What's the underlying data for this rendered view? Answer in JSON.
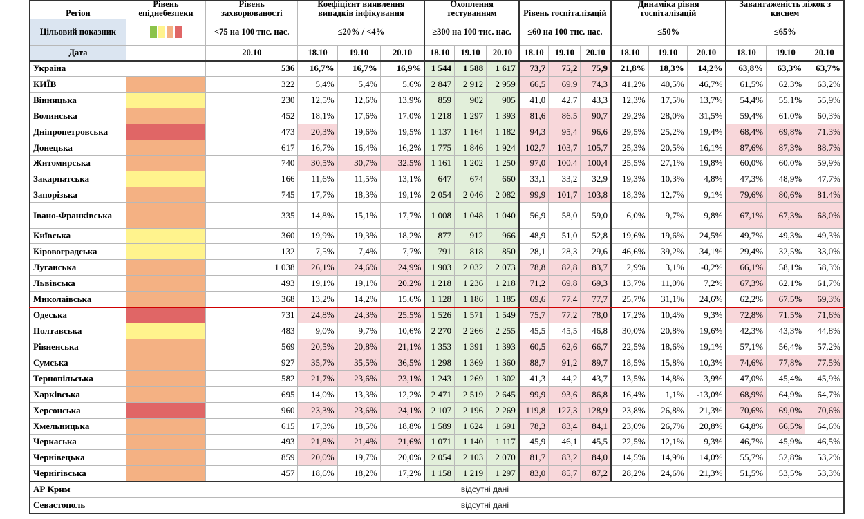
{
  "header": {
    "region": "Регіон",
    "level_title": "Рівень епіднебезпеки",
    "incidence_title": "Рівень захворюваності",
    "detection_title": "Коефіцієнт виявлення випадків інфікування",
    "testing_title": "Охоплення тестуванням",
    "hosp_title": "Рівень госпіталізацій",
    "dyn_title": "Динаміка рівня госпіталізацій",
    "oxygen_title": "Завантаженість ліжок з киснем"
  },
  "target": {
    "label": "Цільовий показник",
    "incidence": "<75 на 100 тис. нас.",
    "detection": "≤20% / <4%",
    "testing": "≥300 на 100 тис. нас.",
    "hosp": "≤60 на 100 тис. нас.",
    "dyn": "≤50%",
    "oxygen": "≤65%"
  },
  "date_row": {
    "label": "Дата",
    "incidence_date": "20.10",
    "dates": [
      "18.10",
      "19.10",
      "20.10"
    ]
  },
  "colors": {
    "orange": "#f4b183",
    "yellow": "#fff38d",
    "red": "#e06666",
    "green_cell": "#e2efda",
    "pink_cell": "#f8d7da",
    "divider": "#d00000",
    "target_label_bg": "#dbe5f1"
  },
  "legend_swatches": [
    "#8bc34a",
    "#fff38d",
    "#f4b183",
    "#e06666"
  ],
  "rows": [
    {
      "name": "Україна",
      "level": "none",
      "inc": "536",
      "det": [
        "16,7%",
        "16,7%",
        "16,9%"
      ],
      "test": [
        "1 544",
        "1 588",
        "1 617"
      ],
      "hosp": [
        "73,7",
        "75,2",
        "75,9"
      ],
      "dyn": [
        "21,8%",
        "18,3%",
        "14,2%"
      ],
      "oxy": [
        "63,8%",
        "63,3%",
        "63,7%"
      ],
      "det_hl": [
        0,
        0,
        0
      ],
      "test_hl": [
        1,
        1,
        1
      ],
      "hosp_hl": [
        1,
        1,
        1
      ],
      "oxy_hl": [
        0,
        0,
        0
      ]
    },
    {
      "name": "КИЇВ",
      "level": "orange",
      "inc": "322",
      "det": [
        "5,4%",
        "5,4%",
        "5,6%"
      ],
      "test": [
        "2 847",
        "2 912",
        "2 959"
      ],
      "hosp": [
        "66,5",
        "69,9",
        "74,3"
      ],
      "dyn": [
        "41,2%",
        "40,5%",
        "46,7%"
      ],
      "oxy": [
        "61,5%",
        "62,3%",
        "63,2%"
      ],
      "det_hl": [
        0,
        0,
        0
      ],
      "test_hl": [
        1,
        1,
        1
      ],
      "hosp_hl": [
        1,
        1,
        1
      ],
      "oxy_hl": [
        0,
        0,
        0
      ]
    },
    {
      "name": "Вінницька",
      "level": "yellow",
      "inc": "230",
      "det": [
        "12,5%",
        "12,6%",
        "13,9%"
      ],
      "test": [
        "859",
        "902",
        "905"
      ],
      "hosp": [
        "41,0",
        "42,7",
        "43,3"
      ],
      "dyn": [
        "12,3%",
        "17,5%",
        "13,7%"
      ],
      "oxy": [
        "54,4%",
        "55,1%",
        "55,9%"
      ],
      "det_hl": [
        0,
        0,
        0
      ],
      "test_hl": [
        1,
        1,
        1
      ],
      "hosp_hl": [
        0,
        0,
        0
      ],
      "oxy_hl": [
        0,
        0,
        0
      ]
    },
    {
      "name": "Волинська",
      "level": "orange",
      "inc": "452",
      "det": [
        "18,1%",
        "17,6%",
        "17,0%"
      ],
      "test": [
        "1 218",
        "1 297",
        "1 393"
      ],
      "hosp": [
        "81,6",
        "86,5",
        "90,7"
      ],
      "dyn": [
        "29,2%",
        "28,0%",
        "31,5%"
      ],
      "oxy": [
        "59,4%",
        "61,0%",
        "60,3%"
      ],
      "det_hl": [
        0,
        0,
        0
      ],
      "test_hl": [
        1,
        1,
        1
      ],
      "hosp_hl": [
        1,
        1,
        1
      ],
      "oxy_hl": [
        0,
        0,
        0
      ]
    },
    {
      "name": "Дніпропетровська",
      "level": "red",
      "inc": "473",
      "det": [
        "20,3%",
        "19,6%",
        "19,5%"
      ],
      "test": [
        "1 137",
        "1 164",
        "1 182"
      ],
      "hosp": [
        "94,3",
        "95,4",
        "96,6"
      ],
      "dyn": [
        "29,5%",
        "25,2%",
        "19,4%"
      ],
      "oxy": [
        "68,4%",
        "69,8%",
        "71,3%"
      ],
      "det_hl": [
        1,
        0,
        0
      ],
      "test_hl": [
        1,
        1,
        1
      ],
      "hosp_hl": [
        1,
        1,
        1
      ],
      "oxy_hl": [
        1,
        1,
        1
      ]
    },
    {
      "name": "Донецька",
      "level": "orange",
      "inc": "617",
      "det": [
        "16,7%",
        "16,4%",
        "16,2%"
      ],
      "test": [
        "1 775",
        "1 846",
        "1 924"
      ],
      "hosp": [
        "102,7",
        "103,7",
        "105,7"
      ],
      "dyn": [
        "25,3%",
        "20,5%",
        "16,1%"
      ],
      "oxy": [
        "87,6%",
        "87,3%",
        "88,7%"
      ],
      "det_hl": [
        0,
        0,
        0
      ],
      "test_hl": [
        1,
        1,
        1
      ],
      "hosp_hl": [
        1,
        1,
        1
      ],
      "oxy_hl": [
        1,
        1,
        1
      ]
    },
    {
      "name": "Житомирська",
      "level": "orange",
      "inc": "740",
      "det": [
        "30,5%",
        "30,7%",
        "32,5%"
      ],
      "test": [
        "1 161",
        "1 202",
        "1 250"
      ],
      "hosp": [
        "97,0",
        "100,4",
        "100,4"
      ],
      "dyn": [
        "25,5%",
        "27,1%",
        "19,8%"
      ],
      "oxy": [
        "60,0%",
        "60,0%",
        "59,9%"
      ],
      "det_hl": [
        1,
        1,
        1
      ],
      "test_hl": [
        1,
        1,
        1
      ],
      "hosp_hl": [
        1,
        1,
        1
      ],
      "oxy_hl": [
        0,
        0,
        0
      ]
    },
    {
      "name": "Закарпатська",
      "level": "yellow",
      "inc": "166",
      "det": [
        "11,6%",
        "11,5%",
        "13,1%"
      ],
      "test": [
        "647",
        "674",
        "660"
      ],
      "hosp": [
        "33,1",
        "33,2",
        "32,9"
      ],
      "dyn": [
        "19,3%",
        "10,3%",
        "4,8%"
      ],
      "oxy": [
        "47,3%",
        "48,9%",
        "47,7%"
      ],
      "det_hl": [
        0,
        0,
        0
      ],
      "test_hl": [
        1,
        1,
        1
      ],
      "hosp_hl": [
        0,
        0,
        0
      ],
      "oxy_hl": [
        0,
        0,
        0
      ]
    },
    {
      "name": "Запорізька",
      "level": "orange",
      "inc": "745",
      "det": [
        "17,7%",
        "18,3%",
        "19,1%"
      ],
      "test": [
        "2 054",
        "2 046",
        "2 082"
      ],
      "hosp": [
        "99,9",
        "101,7",
        "103,8"
      ],
      "dyn": [
        "18,3%",
        "12,7%",
        "9,1%"
      ],
      "oxy": [
        "79,6%",
        "80,6%",
        "81,4%"
      ],
      "det_hl": [
        0,
        0,
        0
      ],
      "test_hl": [
        1,
        1,
        1
      ],
      "hosp_hl": [
        1,
        1,
        1
      ],
      "oxy_hl": [
        1,
        1,
        1
      ]
    },
    {
      "name": "Івано-Франківська",
      "level": "orange",
      "inc": "335",
      "det": [
        "14,8%",
        "15,1%",
        "17,7%"
      ],
      "test": [
        "1 008",
        "1 048",
        "1 040"
      ],
      "hosp": [
        "56,9",
        "58,0",
        "59,0"
      ],
      "dyn": [
        "6,0%",
        "9,7%",
        "9,8%"
      ],
      "oxy": [
        "67,1%",
        "67,3%",
        "68,0%"
      ],
      "det_hl": [
        0,
        0,
        0
      ],
      "test_hl": [
        1,
        1,
        1
      ],
      "hosp_hl": [
        0,
        0,
        0
      ],
      "oxy_hl": [
        1,
        1,
        1
      ],
      "tall": true
    },
    {
      "name": "Київська",
      "level": "yellow",
      "inc": "360",
      "det": [
        "19,9%",
        "19,3%",
        "18,2%"
      ],
      "test": [
        "877",
        "912",
        "966"
      ],
      "hosp": [
        "48,9",
        "51,0",
        "52,8"
      ],
      "dyn": [
        "19,6%",
        "19,6%",
        "24,5%"
      ],
      "oxy": [
        "49,7%",
        "49,3%",
        "49,3%"
      ],
      "det_hl": [
        0,
        0,
        0
      ],
      "test_hl": [
        1,
        1,
        1
      ],
      "hosp_hl": [
        0,
        0,
        0
      ],
      "oxy_hl": [
        0,
        0,
        0
      ]
    },
    {
      "name": "Кіровоградська",
      "level": "yellow",
      "inc": "132",
      "det": [
        "7,5%",
        "7,4%",
        "7,7%"
      ],
      "test": [
        "791",
        "818",
        "850"
      ],
      "hosp": [
        "28,1",
        "28,3",
        "29,6"
      ],
      "dyn": [
        "46,6%",
        "39,2%",
        "34,1%"
      ],
      "oxy": [
        "29,4%",
        "32,5%",
        "33,0%"
      ],
      "det_hl": [
        0,
        0,
        0
      ],
      "test_hl": [
        1,
        1,
        1
      ],
      "hosp_hl": [
        0,
        0,
        0
      ],
      "oxy_hl": [
        0,
        0,
        0
      ]
    },
    {
      "name": "Луганська",
      "level": "orange",
      "inc": "1 038",
      "det": [
        "26,1%",
        "24,6%",
        "24,9%"
      ],
      "test": [
        "1 903",
        "2 032",
        "2 073"
      ],
      "hosp": [
        "78,8",
        "82,8",
        "83,7"
      ],
      "dyn": [
        "2,9%",
        "3,1%",
        "-0,2%"
      ],
      "oxy": [
        "66,1%",
        "58,1%",
        "58,3%"
      ],
      "det_hl": [
        1,
        1,
        1
      ],
      "test_hl": [
        1,
        1,
        1
      ],
      "hosp_hl": [
        1,
        1,
        1
      ],
      "oxy_hl": [
        1,
        0,
        0
      ]
    },
    {
      "name": "Львівська",
      "level": "orange",
      "inc": "493",
      "det": [
        "19,1%",
        "19,1%",
        "20,2%"
      ],
      "test": [
        "1 218",
        "1 236",
        "1 218"
      ],
      "hosp": [
        "71,2",
        "69,8",
        "69,3"
      ],
      "dyn": [
        "13,7%",
        "11,0%",
        "7,2%"
      ],
      "oxy": [
        "67,3%",
        "62,1%",
        "61,7%"
      ],
      "det_hl": [
        0,
        0,
        1
      ],
      "test_hl": [
        1,
        1,
        1
      ],
      "hosp_hl": [
        1,
        1,
        1
      ],
      "oxy_hl": [
        1,
        0,
        0
      ]
    },
    {
      "name": "Миколаївська",
      "level": "orange",
      "inc": "368",
      "det": [
        "13,2%",
        "14,2%",
        "15,6%"
      ],
      "test": [
        "1 128",
        "1 186",
        "1 185"
      ],
      "hosp": [
        "69,6",
        "77,4",
        "77,7"
      ],
      "dyn": [
        "25,7%",
        "31,1%",
        "24,6%"
      ],
      "oxy": [
        "62,2%",
        "67,5%",
        "69,3%"
      ],
      "det_hl": [
        0,
        0,
        0
      ],
      "test_hl": [
        1,
        1,
        1
      ],
      "hosp_hl": [
        1,
        1,
        1
      ],
      "oxy_hl": [
        0,
        1,
        1
      ]
    },
    {
      "name": "Одеська",
      "level": "red",
      "inc": "731",
      "det": [
        "24,8%",
        "24,3%",
        "25,5%"
      ],
      "test": [
        "1 526",
        "1 571",
        "1 549"
      ],
      "hosp": [
        "75,7",
        "77,2",
        "78,0"
      ],
      "dyn": [
        "17,2%",
        "10,4%",
        "9,3%"
      ],
      "oxy": [
        "72,8%",
        "71,5%",
        "71,6%"
      ],
      "det_hl": [
        1,
        1,
        1
      ],
      "test_hl": [
        1,
        1,
        1
      ],
      "hosp_hl": [
        1,
        1,
        1
      ],
      "oxy_hl": [
        1,
        1,
        1
      ]
    },
    {
      "name": "Полтавська",
      "level": "yellow",
      "inc": "483",
      "det": [
        "9,0%",
        "9,7%",
        "10,6%"
      ],
      "test": [
        "2 270",
        "2 266",
        "2 255"
      ],
      "hosp": [
        "45,5",
        "45,5",
        "46,8"
      ],
      "dyn": [
        "30,0%",
        "20,8%",
        "19,6%"
      ],
      "oxy": [
        "42,3%",
        "43,3%",
        "44,8%"
      ],
      "det_hl": [
        0,
        0,
        0
      ],
      "test_hl": [
        1,
        1,
        1
      ],
      "hosp_hl": [
        0,
        0,
        0
      ],
      "oxy_hl": [
        0,
        0,
        0
      ]
    },
    {
      "name": "Рівненська",
      "level": "orange",
      "inc": "569",
      "det": [
        "20,5%",
        "20,8%",
        "21,1%"
      ],
      "test": [
        "1 353",
        "1 391",
        "1 393"
      ],
      "hosp": [
        "60,5",
        "62,6",
        "66,7"
      ],
      "dyn": [
        "22,5%",
        "18,6%",
        "19,1%"
      ],
      "oxy": [
        "57,1%",
        "56,4%",
        "57,2%"
      ],
      "det_hl": [
        1,
        1,
        1
      ],
      "test_hl": [
        1,
        1,
        1
      ],
      "hosp_hl": [
        1,
        1,
        1
      ],
      "oxy_hl": [
        0,
        0,
        0
      ]
    },
    {
      "name": "Сумська",
      "level": "orange",
      "inc": "927",
      "det": [
        "35,7%",
        "35,5%",
        "36,5%"
      ],
      "test": [
        "1 298",
        "1 369",
        "1 360"
      ],
      "hosp": [
        "88,7",
        "91,2",
        "89,7"
      ],
      "dyn": [
        "18,5%",
        "15,8%",
        "10,3%"
      ],
      "oxy": [
        "74,6%",
        "77,8%",
        "77,5%"
      ],
      "det_hl": [
        1,
        1,
        1
      ],
      "test_hl": [
        1,
        1,
        1
      ],
      "hosp_hl": [
        1,
        1,
        1
      ],
      "oxy_hl": [
        1,
        1,
        1
      ]
    },
    {
      "name": "Тернопільська",
      "level": "orange",
      "inc": "582",
      "det": [
        "21,7%",
        "23,6%",
        "23,1%"
      ],
      "test": [
        "1 243",
        "1 269",
        "1 302"
      ],
      "hosp": [
        "41,3",
        "44,2",
        "43,7"
      ],
      "dyn": [
        "13,5%",
        "14,8%",
        "3,9%"
      ],
      "oxy": [
        "47,0%",
        "45,4%",
        "45,9%"
      ],
      "det_hl": [
        1,
        1,
        1
      ],
      "test_hl": [
        1,
        1,
        1
      ],
      "hosp_hl": [
        0,
        0,
        0
      ],
      "oxy_hl": [
        0,
        0,
        0
      ]
    },
    {
      "name": "Харківська",
      "level": "orange",
      "inc": "695",
      "det": [
        "14,0%",
        "13,3%",
        "12,2%"
      ],
      "test": [
        "2 471",
        "2 519",
        "2 645"
      ],
      "hosp": [
        "99,9",
        "93,6",
        "86,8"
      ],
      "dyn": [
        "16,4%",
        "1,1%",
        "-13,0%"
      ],
      "oxy": [
        "68,9%",
        "64,9%",
        "64,7%"
      ],
      "det_hl": [
        0,
        0,
        0
      ],
      "test_hl": [
        1,
        1,
        1
      ],
      "hosp_hl": [
        1,
        1,
        1
      ],
      "oxy_hl": [
        1,
        0,
        0
      ]
    },
    {
      "name": "Херсонська",
      "level": "red",
      "inc": "960",
      "det": [
        "23,3%",
        "23,6%",
        "24,1%"
      ],
      "test": [
        "2 107",
        "2 196",
        "2 269"
      ],
      "hosp": [
        "119,8",
        "127,3",
        "128,9"
      ],
      "dyn": [
        "23,8%",
        "26,8%",
        "21,3%"
      ],
      "oxy": [
        "70,6%",
        "69,0%",
        "70,6%"
      ],
      "det_hl": [
        1,
        1,
        1
      ],
      "test_hl": [
        1,
        1,
        1
      ],
      "hosp_hl": [
        1,
        1,
        1
      ],
      "oxy_hl": [
        1,
        1,
        1
      ]
    },
    {
      "name": "Хмельницька",
      "level": "orange",
      "inc": "615",
      "det": [
        "17,3%",
        "18,5%",
        "18,8%"
      ],
      "test": [
        "1 589",
        "1 624",
        "1 691"
      ],
      "hosp": [
        "78,3",
        "83,4",
        "84,1"
      ],
      "dyn": [
        "23,0%",
        "26,7%",
        "20,8%"
      ],
      "oxy": [
        "64,8%",
        "66,5%",
        "64,6%"
      ],
      "det_hl": [
        0,
        0,
        0
      ],
      "test_hl": [
        1,
        1,
        1
      ],
      "hosp_hl": [
        1,
        1,
        1
      ],
      "oxy_hl": [
        0,
        1,
        0
      ]
    },
    {
      "name": "Черкаська",
      "level": "orange",
      "inc": "493",
      "det": [
        "21,8%",
        "21,4%",
        "21,6%"
      ],
      "test": [
        "1 071",
        "1 140",
        "1 117"
      ],
      "hosp": [
        "45,9",
        "46,1",
        "45,5"
      ],
      "dyn": [
        "22,5%",
        "12,1%",
        "9,3%"
      ],
      "oxy": [
        "46,7%",
        "45,9%",
        "46,5%"
      ],
      "det_hl": [
        1,
        1,
        1
      ],
      "test_hl": [
        1,
        1,
        1
      ],
      "hosp_hl": [
        0,
        0,
        0
      ],
      "oxy_hl": [
        0,
        0,
        0
      ]
    },
    {
      "name": "Чернівецька",
      "level": "orange",
      "inc": "859",
      "det": [
        "20,0%",
        "19,7%",
        "20,0%"
      ],
      "test": [
        "2 054",
        "2 103",
        "2 070"
      ],
      "hosp": [
        "81,7",
        "83,2",
        "84,0"
      ],
      "dyn": [
        "14,5%",
        "14,9%",
        "14,0%"
      ],
      "oxy": [
        "55,7%",
        "52,8%",
        "53,2%"
      ],
      "det_hl": [
        1,
        0,
        0
      ],
      "test_hl": [
        1,
        1,
        1
      ],
      "hosp_hl": [
        1,
        1,
        1
      ],
      "oxy_hl": [
        0,
        0,
        0
      ]
    },
    {
      "name": "Чернігівська",
      "level": "orange",
      "inc": "457",
      "det": [
        "18,6%",
        "18,2%",
        "17,2%"
      ],
      "test": [
        "1 158",
        "1 219",
        "1 297"
      ],
      "hosp": [
        "83,0",
        "85,7",
        "87,2"
      ],
      "dyn": [
        "28,2%",
        "24,6%",
        "21,3%"
      ],
      "oxy": [
        "51,5%",
        "53,5%",
        "53,3%"
      ],
      "det_hl": [
        0,
        0,
        0
      ],
      "test_hl": [
        1,
        1,
        1
      ],
      "hosp_hl": [
        1,
        1,
        1
      ],
      "oxy_hl": [
        0,
        0,
        0
      ]
    }
  ],
  "missing_rows": [
    {
      "name": "АР Крим",
      "note": "відсутні дані"
    },
    {
      "name": "Севастополь",
      "note": "відсутні дані"
    }
  ]
}
